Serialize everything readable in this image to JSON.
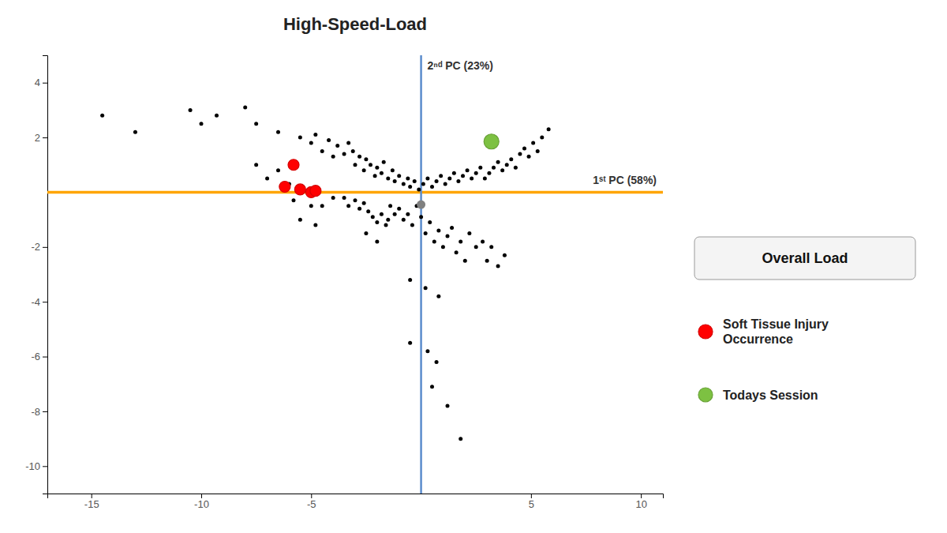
{
  "chart_data": {
    "type": "scatter",
    "title": "High-Speed-Load",
    "xlim": [
      -17,
      11
    ],
    "ylim": [
      -11,
      5
    ],
    "xticks": [
      -15,
      -10,
      -5,
      5,
      10
    ],
    "yticks": [
      -10,
      -8,
      -6,
      -4,
      -2,
      2,
      4
    ],
    "grid": false,
    "reference_lines": [
      {
        "orientation": "horizontal",
        "value": 0.0,
        "color": "#FFA500",
        "label": "1ˢᵗ PC (58%)"
      },
      {
        "orientation": "vertical",
        "value": 0.0,
        "color": "#5B8CCC",
        "label": "2ⁿᵈ PC (23%)"
      }
    ],
    "annotations": [
      {
        "text": "Overall Load"
      }
    ],
    "series": [
      {
        "color": "#000000",
        "x": [
          -14.5,
          -13.0,
          -10.5,
          -10.0,
          -9.3,
          -8.0,
          -7.5,
          -6.5,
          -6.0,
          -6.5,
          -7.0,
          -7.5,
          -5.5,
          -5.0,
          -4.8,
          -4.5,
          -4.2,
          -4.0,
          -3.8,
          -3.5,
          -3.3,
          -3.1,
          -3.0,
          -2.8,
          -2.6,
          -2.5,
          -2.3,
          -2.1,
          -2.0,
          -1.8,
          -1.7,
          -1.5,
          -1.3,
          -1.2,
          -1.0,
          -0.8,
          -0.6,
          -0.5,
          -0.3,
          -0.1,
          0.1,
          0.3,
          0.5,
          0.7,
          0.9,
          1.1,
          1.3,
          1.5,
          1.7,
          1.9,
          2.1,
          2.3,
          2.5,
          2.7,
          2.9,
          3.1,
          3.3,
          3.5,
          3.7,
          3.9,
          4.1,
          4.3,
          4.5,
          4.7,
          4.9,
          5.1,
          5.3,
          5.5,
          5.8,
          -5.0,
          -5.5,
          -5.8,
          -4.0,
          -4.5,
          -4.8,
          -3.5,
          -3.3,
          -3.0,
          -2.8,
          -2.6,
          -2.4,
          -2.2,
          -2.0,
          -2.5,
          -2.0,
          -1.8,
          -1.6,
          -1.4,
          -1.2,
          -1.0,
          -0.8,
          -0.6,
          -0.4,
          -1.5,
          -0.2,
          0.0,
          0.2,
          0.4,
          0.6,
          0.8,
          1.0,
          1.2,
          1.4,
          1.6,
          1.8,
          2.0,
          2.2,
          2.5,
          2.8,
          3.0,
          3.2,
          3.5,
          3.8,
          -0.5,
          0.2,
          0.8,
          -0.5,
          0.3,
          0.7,
          0.5,
          1.2,
          1.8
        ],
        "values": [
          2.8,
          2.2,
          3.0,
          2.5,
          2.8,
          3.1,
          2.5,
          2.2,
          0.3,
          0.8,
          0.5,
          1.0,
          2.0,
          1.8,
          2.1,
          1.5,
          1.9,
          1.3,
          1.7,
          1.4,
          1.8,
          1.5,
          1.0,
          1.3,
          0.8,
          1.2,
          1.0,
          0.6,
          0.9,
          0.7,
          1.1,
          0.5,
          0.8,
          0.4,
          0.6,
          0.3,
          0.5,
          0.2,
          0.4,
          0.1,
          0.3,
          0.5,
          0.2,
          0.4,
          0.6,
          0.3,
          0.5,
          0.7,
          0.4,
          0.6,
          0.8,
          0.5,
          0.7,
          0.9,
          0.5,
          0.7,
          0.9,
          1.1,
          0.8,
          1.0,
          1.2,
          0.9,
          1.4,
          1.6,
          1.3,
          1.8,
          1.5,
          2.0,
          2.3,
          -0.5,
          -1.0,
          -0.3,
          -0.2,
          -0.5,
          -1.2,
          -0.2,
          -0.5,
          -0.3,
          -0.6,
          -0.4,
          -0.7,
          -0.9,
          -1.1,
          -1.5,
          -1.8,
          -0.8,
          -1.2,
          -0.5,
          -0.8,
          -0.6,
          -1.0,
          -0.8,
          -1.2,
          -1.0,
          -0.5,
          -0.9,
          -1.5,
          -1.1,
          -1.8,
          -1.4,
          -2.0,
          -1.6,
          -1.3,
          -2.2,
          -1.8,
          -2.5,
          -1.5,
          -2.0,
          -1.8,
          -2.5,
          -2.0,
          -2.7,
          -2.3,
          -3.2,
          -3.5,
          -3.8,
          -5.5,
          -5.8,
          -6.2,
          -7.1,
          -7.8,
          -9.0
        ]
      },
      {
        "color": "#808080",
        "x": [
          0.0
        ],
        "values": [
          -0.45
        ]
      },
      {
        "name": "Soft Tissue Injury\nOccurrence",
        "color": "#FF0000",
        "x": [
          -5.8,
          -6.2,
          -5.5,
          -5.0,
          -4.8
        ],
        "values": [
          1.0,
          0.2,
          0.1,
          0.0,
          0.05
        ]
      },
      {
        "name": "Todays Session",
        "color": "#7DC142",
        "x": [
          3.2
        ],
        "values": [
          1.85
        ]
      }
    ]
  }
}
